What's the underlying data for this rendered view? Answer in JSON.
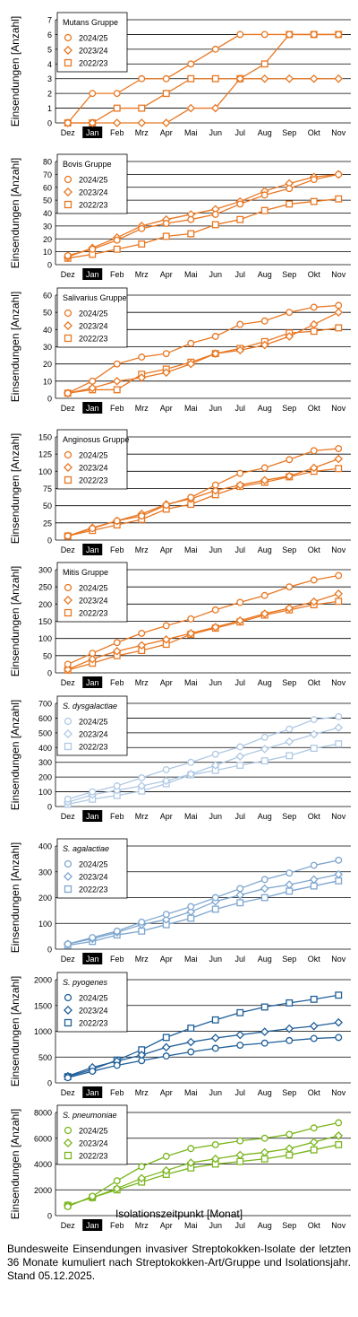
{
  "x_axis_title": "Isolationszeitpunkt [Monat]",
  "caption": "Bundesweite Einsendungen invasiver Streptokokken-Isolate der letzten 36 Monate kumuliert nach Streptokokken-Art/Gruppe und Isolationsjahr. Stand 05.12.2025.",
  "chart_data": [
    {
      "type": "line",
      "legend_title": "Mutans Gruppe",
      "legend_title_italic": false,
      "color": "#e87722",
      "ylabel": "Einsendungen [Anzahl]",
      "categories": [
        "Dez",
        "Jan",
        "Feb",
        "Mrz",
        "Apr",
        "Mai",
        "Jun",
        "Jul",
        "Aug",
        "Sep",
        "Okt",
        "Nov"
      ],
      "highlight_category": "Jan",
      "ylim": [
        0,
        7
      ],
      "yticks": [
        0,
        1,
        2,
        3,
        4,
        5,
        6,
        7
      ],
      "series": [
        {
          "name": "2024/25",
          "marker": "circle",
          "values": [
            0,
            2,
            2,
            3,
            3,
            4,
            5,
            6,
            6,
            6,
            6,
            6
          ]
        },
        {
          "name": "2023/24",
          "marker": "diamond",
          "values": [
            0,
            0,
            0,
            0,
            0,
            1,
            1,
            3,
            3,
            3,
            3,
            3
          ]
        },
        {
          "name": "2022/23",
          "marker": "square",
          "values": [
            0,
            0,
            1,
            1,
            2,
            3,
            3,
            3,
            4,
            6,
            6,
            6
          ]
        }
      ]
    },
    {
      "type": "line",
      "legend_title": "Bovis Gruppe",
      "legend_title_italic": false,
      "color": "#e87722",
      "ylabel": "Einsendungen [Anzahl]",
      "categories": [
        "Dez",
        "Jan",
        "Feb",
        "Mrz",
        "Apr",
        "Mai",
        "Jun",
        "Jul",
        "Aug",
        "Sep",
        "Okt",
        "Nov"
      ],
      "highlight_category": "Jan",
      "ylim": [
        0,
        80
      ],
      "yticks": [
        0,
        10,
        20,
        30,
        40,
        50,
        60,
        70,
        80
      ],
      "series": [
        {
          "name": "2024/25",
          "marker": "circle",
          "values": [
            7,
            12,
            19,
            28,
            32,
            35,
            39,
            47,
            54,
            59,
            66,
            70
          ]
        },
        {
          "name": "2023/24",
          "marker": "diamond",
          "values": [
            6,
            13,
            21,
            30,
            35,
            39,
            43,
            49,
            57,
            63,
            68,
            70
          ]
        },
        {
          "name": "2022/23",
          "marker": "square",
          "values": [
            5,
            8,
            12,
            16,
            22,
            24,
            31,
            35,
            42,
            47,
            49,
            51
          ]
        }
      ]
    },
    {
      "type": "line",
      "legend_title": "Salivarius Gruppe",
      "legend_title_italic": false,
      "color": "#e87722",
      "ylabel": "Einsendungen [Anzahl]",
      "categories": [
        "Dez",
        "Jan",
        "Feb",
        "Mrz",
        "Apr",
        "Mai",
        "Jun",
        "Jul",
        "Aug",
        "Sep",
        "Okt",
        "Nov"
      ],
      "highlight_category": "Jan",
      "ylim": [
        0,
        60
      ],
      "yticks": [
        0,
        10,
        20,
        30,
        40,
        50,
        60
      ],
      "series": [
        {
          "name": "2024/25",
          "marker": "circle",
          "values": [
            3,
            10,
            20,
            24,
            26,
            32,
            36,
            43,
            45,
            50,
            53,
            54
          ]
        },
        {
          "name": "2023/24",
          "marker": "diamond",
          "values": [
            3,
            6,
            10,
            12,
            15,
            20,
            26,
            28,
            31,
            36,
            43,
            50
          ]
        },
        {
          "name": "2022/23",
          "marker": "square",
          "values": [
            3,
            5,
            5,
            14,
            17,
            21,
            26,
            29,
            33,
            38,
            39,
            41
          ]
        }
      ]
    },
    {
      "type": "line",
      "legend_title": "Anginosus Gruppe",
      "legend_title_italic": false,
      "color": "#e87722",
      "ylabel": "Einsendungen [Anzahl]",
      "categories": [
        "Dez",
        "Jan",
        "Feb",
        "Mrz",
        "Apr",
        "Mai",
        "Jun",
        "Jul",
        "Aug",
        "Sep",
        "Okt",
        "Nov"
      ],
      "highlight_category": "Jan",
      "ylim": [
        0,
        150
      ],
      "yticks": [
        0,
        25,
        50,
        75,
        100,
        125,
        150
      ],
      "series": [
        {
          "name": "2024/25",
          "marker": "circle",
          "values": [
            6,
            17,
            28,
            35,
            51,
            62,
            80,
            97,
            105,
            117,
            130,
            133
          ]
        },
        {
          "name": "2023/24",
          "marker": "diamond",
          "values": [
            6,
            18,
            28,
            38,
            52,
            60,
            72,
            80,
            87,
            93,
            105,
            118
          ]
        },
        {
          "name": "2022/23",
          "marker": "square",
          "values": [
            6,
            14,
            22,
            30,
            45,
            52,
            66,
            78,
            84,
            92,
            100,
            104
          ]
        }
      ]
    },
    {
      "type": "line",
      "legend_title": "Mitis Gruppe",
      "legend_title_italic": false,
      "color": "#e87722",
      "ylabel": "Einsendungen [Anzahl]",
      "categories": [
        "Dez",
        "Jan",
        "Feb",
        "Mrz",
        "Apr",
        "Mai",
        "Jun",
        "Jul",
        "Aug",
        "Sep",
        "Okt",
        "Nov"
      ],
      "highlight_category": "Jan",
      "ylim": [
        0,
        300
      ],
      "yticks": [
        0,
        50,
        100,
        150,
        200,
        250,
        300
      ],
      "series": [
        {
          "name": "2024/25",
          "marker": "circle",
          "values": [
            25,
            57,
            88,
            115,
            137,
            157,
            183,
            205,
            225,
            250,
            270,
            283
          ]
        },
        {
          "name": "2023/24",
          "marker": "diamond",
          "values": [
            10,
            40,
            63,
            80,
            97,
            115,
            133,
            152,
            172,
            188,
            207,
            230
          ]
        },
        {
          "name": "2022/23",
          "marker": "square",
          "values": [
            8,
            28,
            50,
            65,
            83,
            112,
            130,
            148,
            168,
            183,
            198,
            208
          ]
        }
      ]
    },
    {
      "type": "line",
      "legend_title": "S. dysgalactiae",
      "legend_title_italic": true,
      "color": "#b0c9e4",
      "ylabel": "Einsendungen [Anzahl]",
      "categories": [
        "Dez",
        "Jan",
        "Feb",
        "Mrz",
        "Apr",
        "Mai",
        "Jun",
        "Jul",
        "Aug",
        "Sep",
        "Okt",
        "Nov"
      ],
      "highlight_category": "Jan",
      "ylim": [
        0,
        700
      ],
      "yticks": [
        0,
        100,
        200,
        300,
        400,
        500,
        600,
        700
      ],
      "series": [
        {
          "name": "2024/25",
          "marker": "circle",
          "values": [
            50,
            100,
            140,
            195,
            250,
            300,
            355,
            405,
            470,
            525,
            590,
            610
          ]
        },
        {
          "name": "2023/24",
          "marker": "diamond",
          "values": [
            30,
            80,
            110,
            140,
            175,
            220,
            280,
            340,
            390,
            440,
            490,
            535
          ]
        },
        {
          "name": "2022/23",
          "marker": "square",
          "values": [
            15,
            50,
            75,
            105,
            155,
            215,
            245,
            280,
            310,
            345,
            395,
            425
          ]
        }
      ]
    },
    {
      "type": "line",
      "legend_title": "S. agalactiae",
      "legend_title_italic": true,
      "color": "#7ea6cf",
      "ylabel": "Einsendungen [Anzahl]",
      "categories": [
        "Dez",
        "Jan",
        "Feb",
        "Mrz",
        "Apr",
        "Mai",
        "Jun",
        "Jul",
        "Aug",
        "Sep",
        "Okt",
        "Nov"
      ],
      "highlight_category": "Jan",
      "ylim": [
        0,
        400
      ],
      "yticks": [
        0,
        100,
        200,
        300,
        400
      ],
      "series": [
        {
          "name": "2024/25",
          "marker": "circle",
          "values": [
            20,
            45,
            70,
            105,
            135,
            165,
            200,
            235,
            270,
            295,
            325,
            345
          ]
        },
        {
          "name": "2023/24",
          "marker": "diamond",
          "values": [
            20,
            40,
            65,
            95,
            115,
            145,
            185,
            210,
            235,
            250,
            270,
            290
          ]
        },
        {
          "name": "2022/23",
          "marker": "square",
          "values": [
            15,
            30,
            55,
            70,
            95,
            120,
            155,
            180,
            200,
            225,
            245,
            265
          ]
        }
      ]
    },
    {
      "type": "line",
      "legend_title": "S. pyogenes",
      "legend_title_italic": true,
      "color": "#1f5f98",
      "ylabel": "Einsendungen [Anzahl]",
      "categories": [
        "Dez",
        "Jan",
        "Feb",
        "Mrz",
        "Apr",
        "Mai",
        "Jun",
        "Jul",
        "Aug",
        "Sep",
        "Okt",
        "Nov"
      ],
      "highlight_category": "Jan",
      "ylim": [
        0,
        2000
      ],
      "yticks": [
        0,
        500,
        1000,
        1500,
        2000
      ],
      "series": [
        {
          "name": "2024/25",
          "marker": "circle",
          "values": [
            100,
            225,
            340,
            430,
            520,
            600,
            670,
            730,
            770,
            820,
            860,
            880
          ]
        },
        {
          "name": "2023/24",
          "marker": "diamond",
          "values": [
            130,
            300,
            420,
            540,
            690,
            790,
            870,
            930,
            990,
            1050,
            1100,
            1170
          ]
        },
        {
          "name": "2022/23",
          "marker": "square",
          "values": [
            120,
            260,
            440,
            640,
            880,
            1060,
            1220,
            1360,
            1470,
            1550,
            1620,
            1700
          ]
        }
      ]
    },
    {
      "type": "line",
      "legend_title": "S. pneumoniae",
      "legend_title_italic": true,
      "color": "#7ab51d",
      "ylabel": "Einsendungen [Anzahl]",
      "categories": [
        "Dez",
        "Jan",
        "Feb",
        "Mrz",
        "Apr",
        "Mai",
        "Jun",
        "Jul",
        "Aug",
        "Sep",
        "Okt",
        "Nov"
      ],
      "highlight_category": "Jan",
      "ylim": [
        0,
        8000
      ],
      "yticks": [
        0,
        2000,
        4000,
        6000,
        8000
      ],
      "series": [
        {
          "name": "2024/25",
          "marker": "circle",
          "values": [
            700,
            1500,
            2700,
            3800,
            4600,
            5200,
            5500,
            5800,
            6000,
            6300,
            6800,
            7200
          ]
        },
        {
          "name": "2023/24",
          "marker": "diamond",
          "values": [
            800,
            1400,
            2100,
            2900,
            3500,
            4100,
            4400,
            4700,
            4900,
            5200,
            5700,
            6200
          ]
        },
        {
          "name": "2022/23",
          "marker": "square",
          "values": [
            800,
            1400,
            2000,
            2600,
            3200,
            3700,
            4000,
            4200,
            4400,
            4700,
            5100,
            5500
          ]
        }
      ]
    }
  ]
}
